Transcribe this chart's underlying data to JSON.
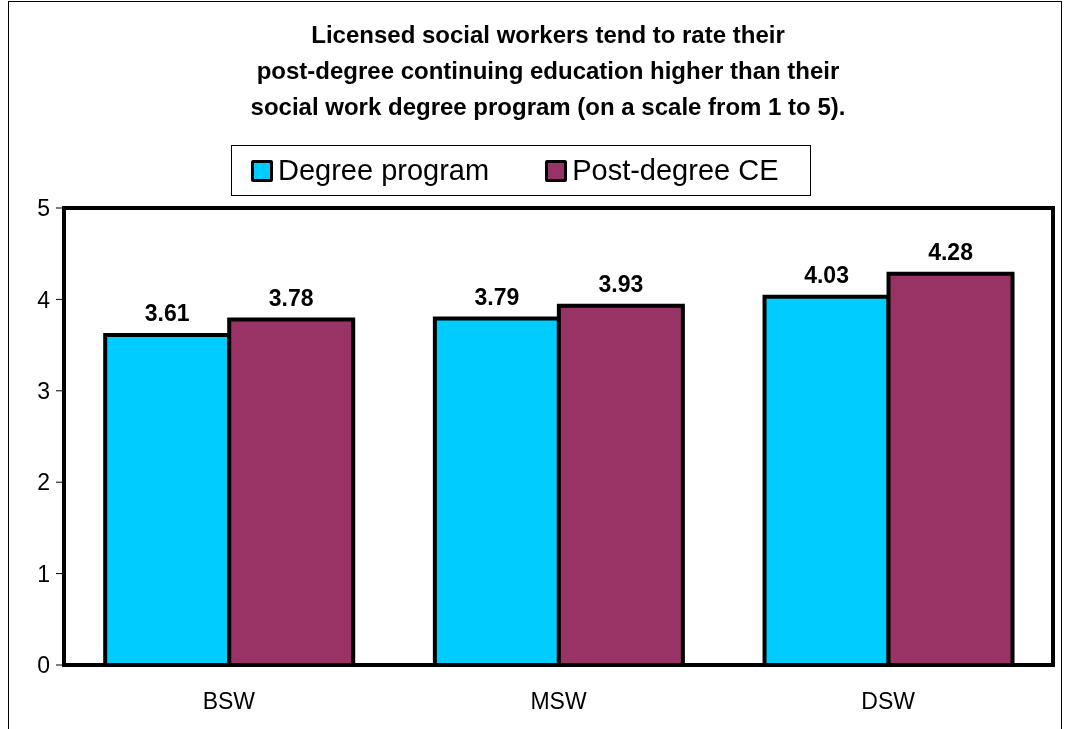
{
  "chart_data": {
    "type": "bar",
    "title": "Licensed social workers tend to rate their\npost-degree continuing education higher than their\nsocial work degree program (on a scale from 1 to 5).",
    "categories": [
      "BSW",
      "MSW",
      "DSW"
    ],
    "series": [
      {
        "name": "Degree program",
        "color": "#00ccff",
        "values": [
          3.61,
          3.79,
          4.03
        ]
      },
      {
        "name": "Post-degree CE",
        "color": "#993366",
        "values": [
          3.78,
          3.93,
          4.28
        ]
      }
    ],
    "ylim": [
      0,
      5
    ],
    "yticks": [
      0,
      1,
      2,
      3,
      4,
      5
    ],
    "legend": "top",
    "data_labels": true
  }
}
